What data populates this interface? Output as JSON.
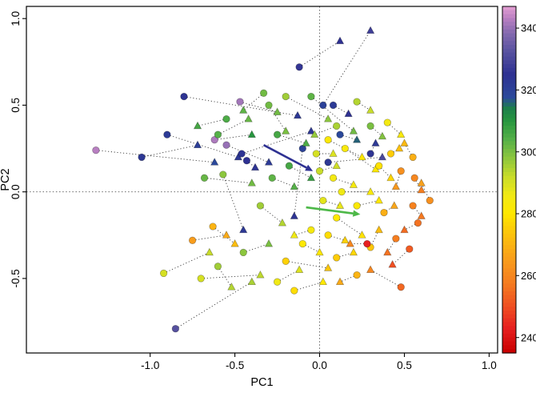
{
  "chart_data": {
    "type": "scatter",
    "title": "",
    "xlabel": "PC1",
    "ylabel": "PC2",
    "xlim": [
      -1.73,
      1.05
    ],
    "ylim": [
      -0.93,
      1.07
    ],
    "x_ticks": [
      -1.0,
      -0.5,
      0.0,
      0.5,
      1.0
    ],
    "x_tick_labels": [
      "-1.0",
      "-0.5",
      "0.0",
      "0.5",
      "1.0"
    ],
    "y_ticks": [
      -0.5,
      0.0,
      0.5,
      1.0
    ],
    "y_tick_labels": [
      "-0.5",
      "0.0",
      "0.5",
      "1.0"
    ],
    "grid": false,
    "marker_shapes": [
      "circle",
      "triangle"
    ],
    "connector_style": "dotted",
    "reference_lines": {
      "vertical_x": 0.0,
      "horizontal_y": 0.0,
      "style": "dotted"
    },
    "color_scale": {
      "min": 2350,
      "max": 3470,
      "tick_values": [
        2400,
        2600,
        2800,
        3000,
        3200,
        3400
      ],
      "tick_labels": [
        "2400",
        "2600",
        "2800",
        "3000",
        "3200",
        "3400"
      ],
      "stops": [
        [
          2350,
          "#c80000"
        ],
        [
          2430,
          "#e62020"
        ],
        [
          2500,
          "#ef4f22"
        ],
        [
          2580,
          "#f57e20"
        ],
        [
          2660,
          "#f9a11b"
        ],
        [
          2740,
          "#fcc60a"
        ],
        [
          2800,
          "#ffe800"
        ],
        [
          2860,
          "#f0e915"
        ],
        [
          2920,
          "#c8dc2a"
        ],
        [
          2980,
          "#8cc63e"
        ],
        [
          3040,
          "#55b048"
        ],
        [
          3100,
          "#27963f"
        ],
        [
          3140,
          "#1d7f4a"
        ],
        [
          3175,
          "#2b4a9b"
        ],
        [
          3250,
          "#2e3192"
        ],
        [
          3320,
          "#56519f"
        ],
        [
          3380,
          "#8168ae"
        ],
        [
          3430,
          "#b87fc1"
        ],
        [
          3470,
          "#e49fd3"
        ]
      ]
    },
    "pairs_format": [
      "circle_x",
      "circle_y",
      "circle_value",
      "triangle_x",
      "triangle_y",
      "triangle_value"
    ],
    "pairs": [
      [
        -1.32,
        0.24,
        3430,
        -0.62,
        0.17,
        3180
      ],
      [
        -1.05,
        0.2,
        3230,
        -0.72,
        0.27,
        3210
      ],
      [
        -0.9,
        0.33,
        3220,
        -0.48,
        0.2,
        3230
      ],
      [
        -0.8,
        0.55,
        3240,
        -0.13,
        0.44,
        3230
      ],
      [
        -0.12,
        0.72,
        3260,
        0.12,
        0.87,
        3250
      ],
      [
        0.02,
        0.5,
        3200,
        0.3,
        0.93,
        3280
      ],
      [
        -0.62,
        0.3,
        3420,
        -0.4,
        0.33,
        3100
      ],
      [
        -0.55,
        0.27,
        3400,
        -0.3,
        0.17,
        3220
      ],
      [
        -0.47,
        0.52,
        3410,
        -0.25,
        0.46,
        3010
      ],
      [
        -0.85,
        -0.79,
        3320,
        -0.4,
        -0.52,
        2950
      ],
      [
        -0.46,
        0.22,
        3240,
        -0.05,
        0.35,
        3230
      ],
      [
        -0.43,
        0.18,
        3250,
        -0.38,
        0.14,
        3240
      ],
      [
        0.3,
        0.22,
        3240,
        0.33,
        0.28,
        3230
      ],
      [
        0.08,
        0.5,
        3220,
        0.17,
        0.45,
        3250
      ],
      [
        0.05,
        0.17,
        3230,
        0.37,
        0.2,
        3300
      ],
      [
        -0.1,
        0.25,
        3200,
        -0.15,
        -0.14,
        3240
      ],
      [
        -0.57,
        0.1,
        2980,
        -0.45,
        -0.22,
        3230
      ],
      [
        -0.55,
        0.42,
        3050,
        -0.72,
        0.38,
        3060
      ],
      [
        -0.6,
        0.33,
        3040,
        -0.42,
        0.42,
        3020
      ],
      [
        -0.3,
        0.5,
        3010,
        -0.2,
        0.35,
        3000
      ],
      [
        -0.2,
        0.55,
        2960,
        0.05,
        0.42,
        2980
      ],
      [
        -0.05,
        0.55,
        3030,
        0.2,
        0.35,
        3010
      ],
      [
        0.3,
        0.38,
        3000,
        0.37,
        0.32,
        2990
      ],
      [
        -0.25,
        0.33,
        3060,
        -0.08,
        0.28,
        3050
      ],
      [
        -0.68,
        0.08,
        3020,
        -0.4,
        0.05,
        3010
      ],
      [
        -0.28,
        0.08,
        3030,
        -0.15,
        0.03,
        3040
      ],
      [
        0.1,
        0.38,
        2950,
        -0.03,
        0.33,
        2970
      ],
      [
        -0.45,
        -0.35,
        2980,
        -0.3,
        -0.3,
        3000
      ],
      [
        -0.6,
        -0.43,
        2960,
        -0.52,
        -0.55,
        2940
      ],
      [
        -0.7,
        -0.5,
        2900,
        -0.35,
        -0.48,
        2930
      ],
      [
        -0.25,
        -0.52,
        2860,
        -0.12,
        -0.45,
        2890
      ],
      [
        0.05,
        0.3,
        2820,
        0.25,
        0.2,
        2800
      ],
      [
        0.15,
        0.25,
        2830,
        0.33,
        0.13,
        2810
      ],
      [
        0.35,
        0.15,
        2790,
        0.42,
        0.08,
        2770
      ],
      [
        0.08,
        0.08,
        2850,
        0.2,
        0.04,
        2840
      ],
      [
        0.13,
        0.0,
        2860,
        0.3,
        0.0,
        2830
      ],
      [
        0.02,
        -0.05,
        2880,
        0.12,
        -0.08,
        2870
      ],
      [
        0.22,
        -0.08,
        2820,
        0.35,
        -0.05,
        2800
      ],
      [
        0.05,
        -0.25,
        2780,
        0.15,
        -0.28,
        2760
      ],
      [
        0.1,
        -0.15,
        2800,
        0.25,
        -0.25,
        2790
      ],
      [
        -0.1,
        -0.3,
        2810,
        0.0,
        -0.35,
        2800
      ],
      [
        -0.2,
        -0.4,
        2760,
        0.05,
        -0.44,
        2740
      ],
      [
        0.1,
        -0.38,
        2750,
        0.2,
        -0.35,
        2770
      ],
      [
        0.3,
        -0.32,
        2740,
        0.35,
        -0.22,
        2720
      ],
      [
        -0.02,
        0.22,
        2900,
        0.08,
        0.22,
        2890
      ],
      [
        0.0,
        0.12,
        2920,
        0.1,
        0.15,
        2910
      ],
      [
        0.48,
        0.12,
        2620,
        0.45,
        0.03,
        2640
      ],
      [
        0.56,
        0.08,
        2600,
        0.6,
        0.01,
        2580
      ],
      [
        0.55,
        -0.08,
        2590,
        0.6,
        -0.14,
        2570
      ],
      [
        0.58,
        -0.18,
        2560,
        0.5,
        -0.22,
        2550
      ],
      [
        0.45,
        -0.27,
        2580,
        0.4,
        -0.35,
        2560
      ],
      [
        0.48,
        -0.55,
        2540,
        0.3,
        -0.45,
        2600
      ],
      [
        0.53,
        -0.33,
        2520,
        0.43,
        -0.42,
        2500
      ],
      [
        0.28,
        -0.3,
        2430,
        0.18,
        -0.3,
        2600
      ],
      [
        -0.75,
        -0.28,
        2650,
        -0.55,
        -0.25,
        2680
      ],
      [
        -0.63,
        -0.2,
        2700,
        -0.5,
        -0.3,
        2720
      ],
      [
        -0.15,
        -0.57,
        2780,
        0.02,
        -0.52,
        2800
      ],
      [
        0.22,
        -0.48,
        2700,
        0.12,
        -0.52,
        2680
      ],
      [
        0.42,
        0.22,
        2750,
        0.47,
        0.25,
        2730
      ],
      [
        -0.33,
        0.57,
        3010,
        -0.45,
        0.47,
        3030
      ],
      [
        0.22,
        0.52,
        2940,
        0.3,
        0.47,
        2920
      ],
      [
        0.4,
        0.4,
        2850,
        0.48,
        0.33,
        2830
      ],
      [
        0.55,
        0.2,
        2690,
        0.5,
        0.28,
        2710
      ],
      [
        0.65,
        -0.05,
        2620,
        0.6,
        0.05,
        2660
      ],
      [
        -0.92,
        -0.47,
        2900,
        -0.65,
        -0.35,
        2920
      ],
      [
        0.12,
        0.33,
        3180,
        0.22,
        0.3,
        3160
      ],
      [
        -0.35,
        -0.08,
        2960,
        -0.22,
        -0.18,
        2940
      ],
      [
        -0.18,
        0.15,
        3060,
        -0.05,
        0.08,
        3080
      ],
      [
        0.38,
        -0.12,
        2690,
        0.44,
        -0.08,
        2670
      ],
      [
        -0.05,
        -0.22,
        2840,
        -0.15,
        -0.25,
        2860
      ]
    ],
    "arrows": [
      {
        "x1": -0.33,
        "y1": 0.27,
        "x2": -0.04,
        "y2": 0.12,
        "color": "#2e3192"
      },
      {
        "x1": -0.08,
        "y1": -0.09,
        "x2": 0.24,
        "y2": -0.13,
        "color": "#4db848"
      }
    ]
  }
}
